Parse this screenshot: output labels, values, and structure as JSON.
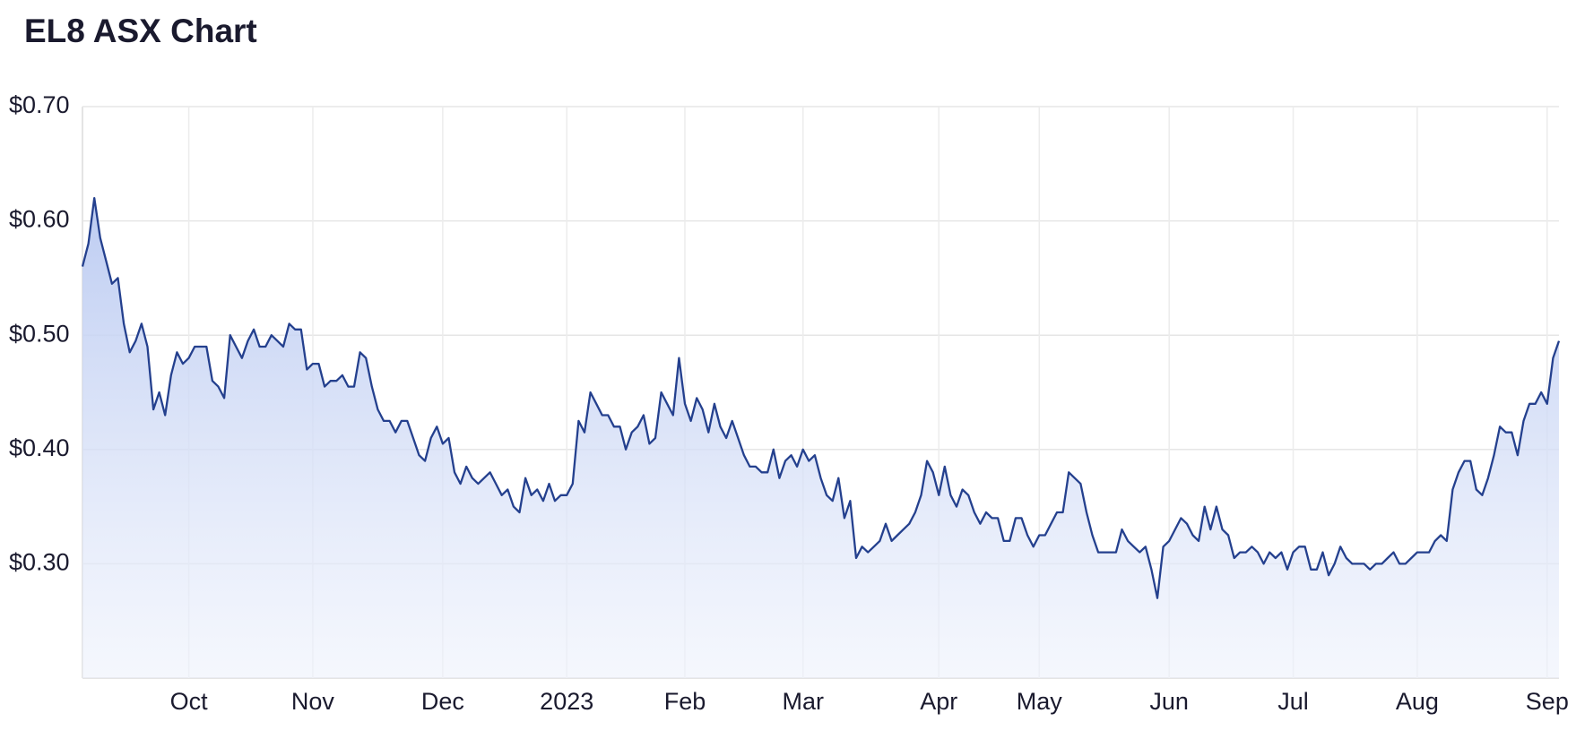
{
  "chart_data": {
    "type": "area",
    "title": "EL8 ASX Chart",
    "color": "#24408e",
    "grid": true,
    "values": [
      0.56,
      0.58,
      0.62,
      0.585,
      0.565,
      0.545,
      0.55,
      0.51,
      0.485,
      0.495,
      0.51,
      0.49,
      0.435,
      0.45,
      0.43,
      0.465,
      0.485,
      0.475,
      0.48,
      0.49,
      0.49,
      0.49,
      0.46,
      0.455,
      0.445,
      0.5,
      0.49,
      0.48,
      0.495,
      0.505,
      0.49,
      0.49,
      0.5,
      0.495,
      0.49,
      0.51,
      0.505,
      0.505,
      0.47,
      0.475,
      0.475,
      0.455,
      0.46,
      0.46,
      0.465,
      0.455,
      0.455,
      0.485,
      0.48,
      0.455,
      0.435,
      0.425,
      0.425,
      0.415,
      0.425,
      0.425,
      0.41,
      0.395,
      0.39,
      0.41,
      0.42,
      0.405,
      0.41,
      0.38,
      0.37,
      0.385,
      0.375,
      0.37,
      0.375,
      0.38,
      0.37,
      0.36,
      0.365,
      0.35,
      0.345,
      0.375,
      0.36,
      0.365,
      0.355,
      0.37,
      0.355,
      0.36,
      0.36,
      0.37,
      0.425,
      0.415,
      0.45,
      0.44,
      0.43,
      0.43,
      0.42,
      0.42,
      0.4,
      0.415,
      0.42,
      0.43,
      0.405,
      0.41,
      0.45,
      0.44,
      0.43,
      0.48,
      0.44,
      0.425,
      0.445,
      0.435,
      0.415,
      0.44,
      0.42,
      0.41,
      0.425,
      0.41,
      0.395,
      0.385,
      0.385,
      0.38,
      0.38,
      0.4,
      0.375,
      0.39,
      0.395,
      0.385,
      0.4,
      0.39,
      0.395,
      0.375,
      0.36,
      0.355,
      0.375,
      0.34,
      0.355,
      0.305,
      0.315,
      0.31,
      0.315,
      0.32,
      0.335,
      0.32,
      0.325,
      0.33,
      0.335,
      0.345,
      0.36,
      0.39,
      0.38,
      0.36,
      0.385,
      0.36,
      0.35,
      0.365,
      0.36,
      0.345,
      0.335,
      0.345,
      0.34,
      0.34,
      0.32,
      0.32,
      0.34,
      0.34,
      0.325,
      0.315,
      0.325,
      0.325,
      0.335,
      0.345,
      0.345,
      0.38,
      0.375,
      0.37,
      0.345,
      0.325,
      0.31,
      0.31,
      0.31,
      0.31,
      0.33,
      0.32,
      0.315,
      0.31,
      0.315,
      0.295,
      0.27,
      0.315,
      0.32,
      0.33,
      0.34,
      0.335,
      0.325,
      0.32,
      0.35,
      0.33,
      0.35,
      0.33,
      0.325,
      0.305,
      0.31,
      0.31,
      0.315,
      0.31,
      0.3,
      0.31,
      0.305,
      0.31,
      0.295,
      0.31,
      0.315,
      0.315,
      0.295,
      0.295,
      0.31,
      0.29,
      0.3,
      0.315,
      0.305,
      0.3,
      0.3,
      0.3,
      0.295,
      0.3,
      0.3,
      0.305,
      0.31,
      0.3,
      0.3,
      0.305,
      0.31,
      0.31,
      0.31,
      0.32,
      0.325,
      0.32,
      0.365,
      0.38,
      0.39,
      0.39,
      0.365,
      0.36,
      0.375,
      0.395,
      0.42,
      0.415,
      0.415,
      0.395,
      0.425,
      0.44,
      0.44,
      0.45,
      0.44,
      0.48,
      0.495
    ],
    "ylim": [
      0.2,
      0.7
    ],
    "yticks": [
      {
        "value": 0.3,
        "label": "$0.30"
      },
      {
        "value": 0.4,
        "label": "$0.40"
      },
      {
        "value": 0.5,
        "label": "$0.50"
      },
      {
        "value": 0.6,
        "label": "$0.60"
      },
      {
        "value": 0.7,
        "label": "$0.70"
      }
    ],
    "xticks": [
      {
        "value": 18,
        "label": "Oct"
      },
      {
        "value": 39,
        "label": "Nov"
      },
      {
        "value": 61,
        "label": "Dec"
      },
      {
        "value": 82,
        "label": "2023"
      },
      {
        "value": 102,
        "label": "Feb"
      },
      {
        "value": 122,
        "label": "Mar"
      },
      {
        "value": 145,
        "label": "Apr"
      },
      {
        "value": 162,
        "label": "May"
      },
      {
        "value": 184,
        "label": "Jun"
      },
      {
        "value": 205,
        "label": "Jul"
      },
      {
        "value": 226,
        "label": "Aug"
      },
      {
        "value": 248,
        "label": "Sep"
      }
    ]
  }
}
